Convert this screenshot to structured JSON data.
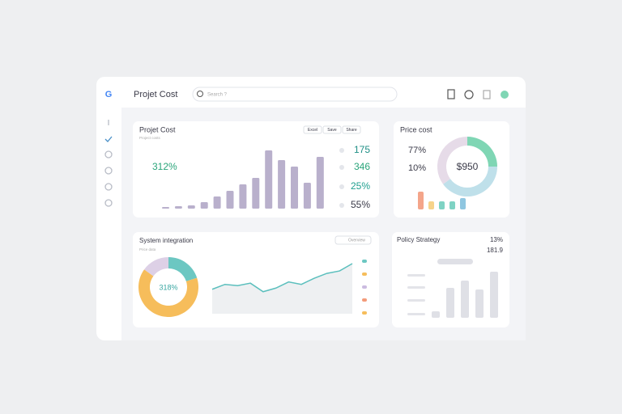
{
  "header": {
    "logo": "G",
    "title": "Projet Cost",
    "search": "Search ?"
  },
  "cost_card": {
    "title": "Projet Cost",
    "subtitle": "Project costs",
    "headline": "312%",
    "buttons": [
      "Excel",
      "Save",
      "Share"
    ],
    "bars": [
      2,
      3,
      4,
      8,
      15,
      22,
      30,
      38,
      72,
      60,
      52,
      32,
      64
    ],
    "bar_color": "#b9b0cc",
    "stats": [
      "175",
      "346",
      "25%",
      "55%"
    ],
    "stat_colors": [
      "#1f8f86",
      "#2aa57a",
      "#1f9f8f",
      "#3a3a48"
    ]
  },
  "price_card": {
    "title": "Price cost",
    "stats": [
      "77%",
      "10%"
    ],
    "center": "$950",
    "segments": [
      25,
      40,
      35
    ],
    "segment_colors": [
      "#7fd6b4",
      "#bfe0ea",
      "#e6dbe8"
    ],
    "bars": [
      22,
      10,
      10,
      10,
      14
    ],
    "bar_colors": [
      "#f4a58a",
      "#f6d38a",
      "#7fd3c4",
      "#7fd3c4",
      "#8fc6e0"
    ]
  },
  "system_card": {
    "title": "System integration",
    "subtitle": "Price data",
    "dropdown": "Overview",
    "center": "318%",
    "segments": [
      20,
      65,
      15
    ],
    "segment_colors": [
      "#6cc7c2",
      "#f6bd5b",
      "#ddd0e6"
    ],
    "line": [
      40,
      48,
      46,
      50,
      36,
      42,
      52,
      48,
      58,
      66,
      70,
      82
    ],
    "line_color": "#5bbfbd",
    "legend_colors": [
      "#6cc7c2",
      "#f6bd5b",
      "#cbbbe0",
      "#f39b7a",
      "#f6bd5b"
    ]
  },
  "policy_card": {
    "title": "Policy Strategy",
    "stat1": "13%",
    "stat2": "181.9",
    "bars": [
      8,
      37,
      46,
      35,
      57
    ],
    "bar_color": "#dfe0e6"
  }
}
